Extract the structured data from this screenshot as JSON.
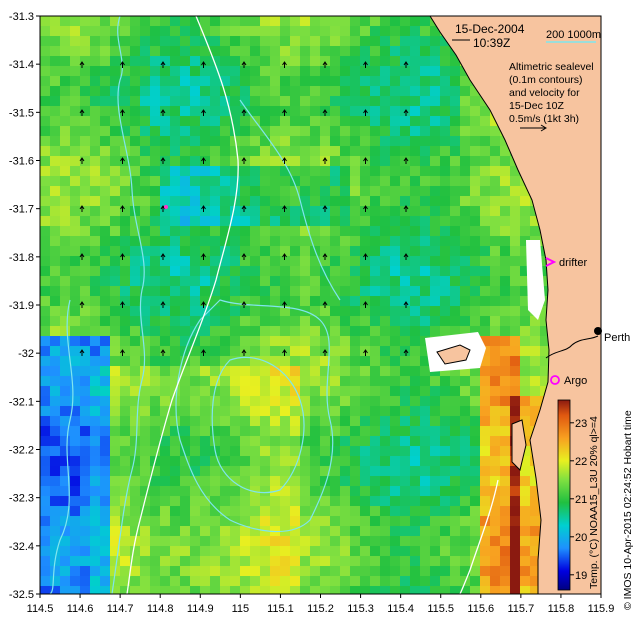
{
  "map": {
    "date": "15-Dec-2004",
    "time": "10:39Z",
    "scale_label": "200  1000m",
    "legend_lines": [
      "Altimetric sealevel",
      "(0.1m contours)",
      "and velocity for",
      "15-Dec 10Z",
      "0.5m/s (1kt 3h)"
    ],
    "labels": {
      "drifter": "drifter",
      "argo": "Argo",
      "perth": "Perth"
    },
    "credit": "© IMOS 10-Apr-2015 02:24:52 Hobart time",
    "colorbar_title": "Temp. (°C) NOAA15_L3U 20% ql>=4",
    "colorbar_ticks": [
      "19",
      "20",
      "21",
      "22",
      "23"
    ],
    "colorbar_range": [
      18.6,
      23.6
    ],
    "x_ticks": [
      "114.5",
      "114.6",
      "114.7",
      "114.8",
      "114.9",
      "115",
      "115.1",
      "115.2",
      "115.3",
      "115.4",
      "115.5",
      "115.6",
      "115.7",
      "115.8",
      "115.9"
    ],
    "y_ticks": [
      "-31.3",
      "-31.4",
      "-31.5",
      "-31.6",
      "-31.7",
      "-31.8",
      "-31.9",
      "-32",
      "-32.1",
      "-32.2",
      "-32.3",
      "-32.4",
      "-32.5"
    ],
    "colors": {
      "land": "#f7c49f",
      "contour": "#7fe6ee",
      "isobath": "#ffffff",
      "argo": "#ff00ff",
      "drifter": "#ff00ff"
    }
  }
}
